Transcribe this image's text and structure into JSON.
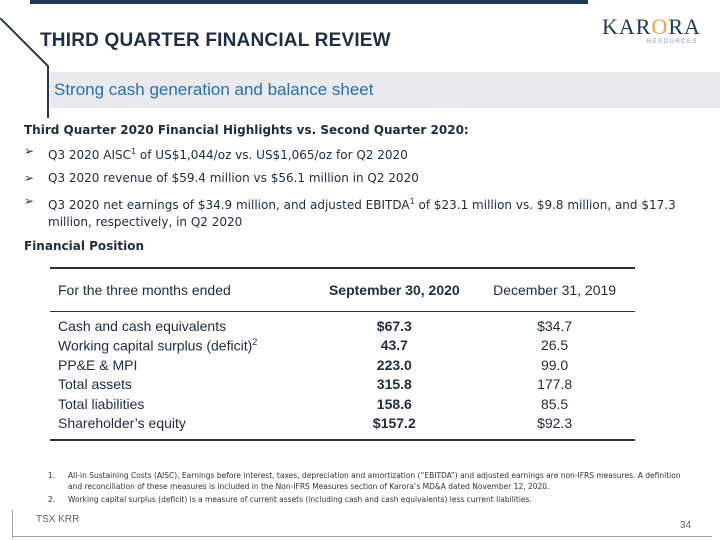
{
  "header": {
    "title": "THIRD QUARTER FINANCIAL REVIEW",
    "subtitle": "Strong cash generation and balance sheet",
    "logo": {
      "name": "KARORA",
      "tagline": "RESOURCES"
    }
  },
  "highlights": {
    "heading": "Third Quarter 2020 Financial Highlights vs. Second Quarter 2020:",
    "bullets": [
      {
        "pre": "Q3 2020 AISC",
        "sup": "1",
        "post": " of US$1,044/oz vs. US$1,065/oz for Q2 2020"
      },
      {
        "pre": "Q3 2020 revenue of $59.4 million vs $56.1 million in Q2 2020",
        "sup": "",
        "post": ""
      },
      {
        "pre": "Q3 2020 net earnings of $34.9 million, and adjusted EBITDA",
        "sup": "1",
        "post": " of $23.1 million vs. $9.8 million, and $17.3 million, respectively, in Q2 2020"
      }
    ]
  },
  "financial_position": {
    "heading": "Financial Position",
    "columns": [
      "For the three months ended",
      "September 30, 2020",
      "December 31, 2019"
    ],
    "rows": [
      {
        "label": "Cash and cash equivalents",
        "sup": "",
        "sep2020": "$67.3",
        "dec2019": "$34.7"
      },
      {
        "label": "Working capital surplus (deficit)",
        "sup": "2",
        "sep2020": "43.7",
        "dec2019": "26.5"
      },
      {
        "label": "PP&E & MPI",
        "sup": "",
        "sep2020": "223.0",
        "dec2019": "99.0"
      },
      {
        "label": "Total assets",
        "sup": "",
        "sep2020": "315.8",
        "dec2019": "177.8"
      },
      {
        "label": "Total liabilities",
        "sup": "",
        "sep2020": "158.6",
        "dec2019": "85.5"
      },
      {
        "label": "Shareholder’s equity",
        "sup": "",
        "sep2020": "$157.2",
        "dec2019": "$92.3"
      }
    ]
  },
  "footnotes": [
    {
      "num": "1.",
      "text": "All-in Sustaining Costs (AISC), Earnings before interest, taxes, depreciation and amortization (“EBITDA”) and adjusted earnings are non-IFRS measures. A definition and reconciliation of these measures is included in the Non-IFRS Measures section of Karora’s MD&A dated November 12, 2020."
    },
    {
      "num": "2.",
      "text": "Working capital surplus (deficit) is a measure of current assets (including cash and cash equivalents) less current liabilities."
    }
  ],
  "footer": {
    "ticker": "TSX KRR",
    "page": "34"
  },
  "colors": {
    "navy": "#1c3a57",
    "accent_blue": "#2a6fa8",
    "gold": "#e8a23a",
    "band": "#e8eaee"
  }
}
